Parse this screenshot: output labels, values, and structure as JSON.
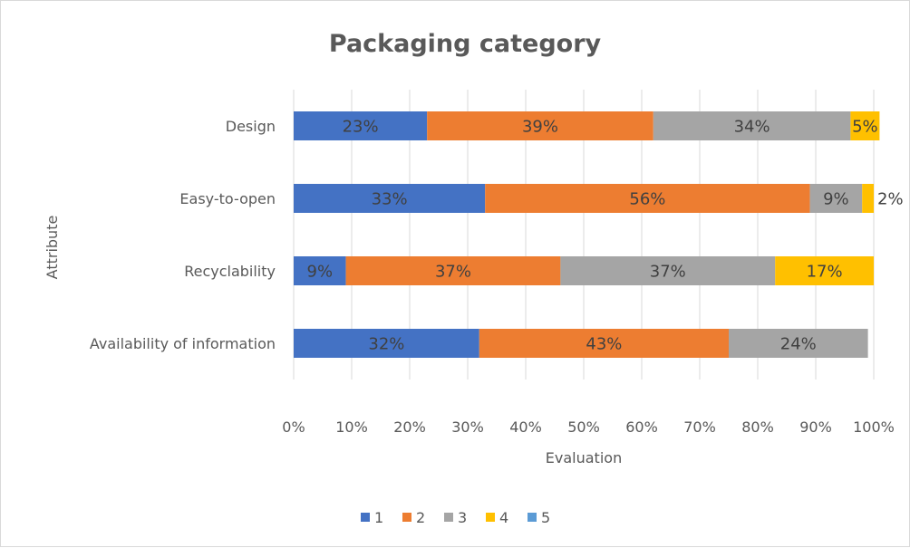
{
  "chart_data": {
    "type": "bar",
    "orientation": "horizontal",
    "stacked": "percent",
    "title": "Packaging category",
    "xlabel": "Evaluation",
    "ylabel": "Attribute",
    "xlim": [
      0,
      100
    ],
    "x_ticks": [
      "0%",
      "10%",
      "20%",
      "30%",
      "40%",
      "50%",
      "60%",
      "70%",
      "80%",
      "90%",
      "100%"
    ],
    "grid": "vertical",
    "legend_position": "bottom",
    "categories": [
      "Design",
      "Easy-to-open",
      "Recyclability",
      "Availability of information"
    ],
    "series": [
      {
        "name": "1",
        "color": "#4472C4",
        "values": [
          23,
          33,
          9,
          32
        ],
        "labels": [
          "23%",
          "33%",
          "9%",
          "32%"
        ]
      },
      {
        "name": "2",
        "color": "#ED7D31",
        "values": [
          39,
          56,
          37,
          43
        ],
        "labels": [
          "39%",
          "56%",
          "37%",
          "43%"
        ]
      },
      {
        "name": "3",
        "color": "#A5A5A5",
        "values": [
          34,
          9,
          37,
          24
        ],
        "labels": [
          "34%",
          "9%",
          "37%",
          "24%"
        ]
      },
      {
        "name": "4",
        "color": "#FFC000",
        "values": [
          5,
          2,
          17,
          0
        ],
        "labels": [
          "5%",
          "2%",
          "17%",
          ""
        ]
      },
      {
        "name": "5",
        "color": "#5B9BD5",
        "values": [
          0,
          0,
          0,
          0
        ],
        "labels": [
          "",
          "",
          "",
          ""
        ]
      }
    ]
  }
}
